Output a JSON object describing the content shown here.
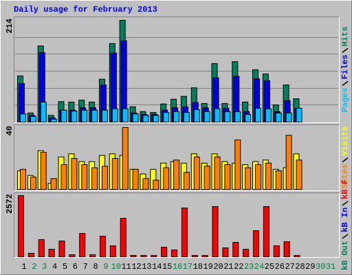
{
  "chart_data": [
    {
      "type": "bar",
      "title": "Daily usage for February 2013",
      "ylim": [
        0,
        214
      ],
      "yticks": [
        214
      ],
      "grid": true,
      "series": [
        {
          "name": "Hits",
          "color": "#00805c",
          "values": [
            97,
            19,
            160,
            14,
            43,
            42,
            46,
            42,
            90,
            165,
            214,
            32,
            22,
            20,
            38,
            48,
            54,
            72,
            39,
            123,
            39,
            127,
            42,
            110,
            101,
            36,
            78,
            49,
            null,
            null,
            null
          ]
        },
        {
          "name": "Files",
          "color": "#0000e6",
          "values": [
            81,
            14,
            146,
            9,
            25,
            25,
            30,
            30,
            78,
            145,
            171,
            19,
            16,
            16,
            25,
            30,
            32,
            41,
            30,
            93,
            29,
            96,
            22,
            91,
            87,
            22,
            45,
            29,
            null,
            null,
            null
          ]
        },
        {
          "name": "Pages",
          "color": "#00c0ff",
          "values": [
            17,
            12,
            42,
            6,
            25,
            23,
            25,
            25,
            25,
            28,
            28,
            17,
            14,
            14,
            20,
            22,
            20,
            26,
            22,
            28,
            22,
            22,
            16,
            29,
            28,
            19,
            19,
            29,
            null,
            null,
            null
          ]
        }
      ]
    },
    {
      "type": "bar",
      "ylim": [
        0,
        40
      ],
      "yticks": [
        40
      ],
      "series": [
        {
          "name": "Visits",
          "color": "#ffff00",
          "values": [
            12,
            9,
            25,
            4,
            21,
            23,
            18,
            18,
            22,
            23,
            22,
            13,
            10,
            13,
            17,
            18,
            17,
            23,
            17,
            23,
            18,
            17,
            16,
            18,
            19,
            13,
            14,
            23,
            null,
            null,
            null
          ]
        },
        {
          "name": "Sites",
          "color": "#ff8000",
          "values": [
            13,
            8,
            24,
            7,
            16,
            20,
            16,
            14,
            15,
            20,
            40,
            13,
            7,
            6,
            14,
            19,
            11,
            21,
            15,
            21,
            16,
            32,
            14,
            16,
            17,
            12,
            35,
            19,
            null,
            null,
            null
          ]
        }
      ]
    },
    {
      "type": "bar",
      "ylim": [
        0,
        2572
      ],
      "yticks": [
        2572
      ],
      "categories": [
        "1",
        "2",
        "3",
        "4",
        "5",
        "6",
        "7",
        "8",
        "9",
        "10",
        "11",
        "12",
        "13",
        "14",
        "15",
        "16",
        "17",
        "18",
        "19",
        "20",
        "21",
        "22",
        "23",
        "24",
        "25",
        "26",
        "27",
        "28",
        "29",
        "30",
        "31"
      ],
      "category_colors": [
        "#000000",
        "#008040",
        "#008040",
        "#000000",
        "#000000",
        "#000000",
        "#000000",
        "#000000",
        "#008040",
        "#008040",
        "#000000",
        "#000000",
        "#000000",
        "#000000",
        "#000000",
        "#008040",
        "#008040",
        "#000000",
        "#000000",
        "#000000",
        "#000000",
        "#000000",
        "#008040",
        "#008040",
        "#000000",
        "#000000",
        "#000000",
        "#000000",
        "#000000",
        "#008040",
        "#008040"
      ],
      "series": [
        {
          "name": "kB F",
          "color": "#ff0000",
          "values": [
            2572,
            145,
            723,
            318,
            665,
            87,
            983,
            87,
            867,
            462,
            1618,
            58,
            58,
            58,
            405,
            289,
            2052,
            58,
            58,
            2110,
            376,
            607,
            318,
            1098,
            2110,
            462,
            636,
            58,
            null,
            null,
            null
          ]
        },
        {
          "name": "kB In",
          "color": "#0000ff",
          "values": [
            null,
            null,
            null,
            null,
            null,
            null,
            null,
            null,
            null,
            null,
            null,
            null,
            null,
            null,
            null,
            null,
            null,
            null,
            null,
            null,
            null,
            null,
            null,
            null,
            null,
            null,
            null,
            null,
            null,
            null,
            null
          ]
        },
        {
          "name": "kB Out",
          "color": "#00805c",
          "values": [
            null,
            null,
            null,
            null,
            null,
            null,
            null,
            null,
            null,
            null,
            null,
            null,
            null,
            null,
            null,
            null,
            null,
            null,
            null,
            null,
            null,
            null,
            null,
            null,
            null,
            null,
            null,
            null,
            null,
            null,
            null
          ]
        }
      ]
    }
  ]
}
